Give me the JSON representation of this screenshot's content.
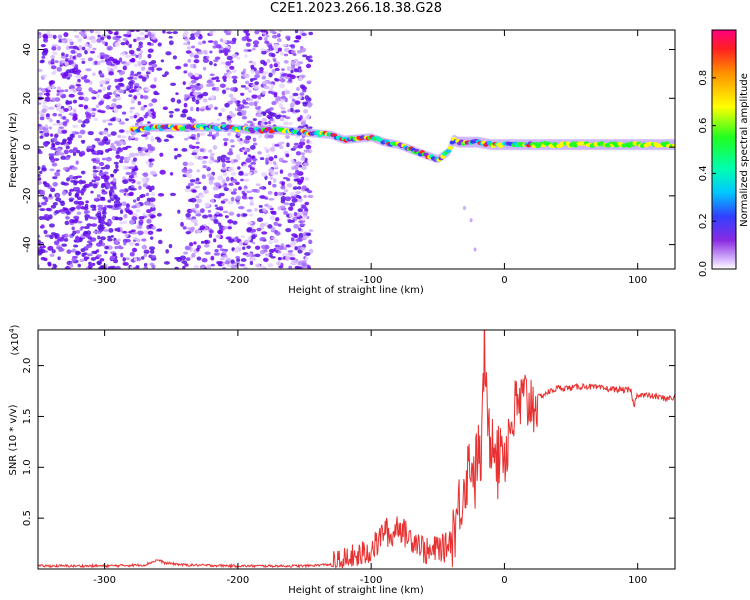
{
  "title": "C2E1.2023.266.18.38.G28",
  "chart_data": [
    {
      "type": "heatmap",
      "title": "C2E1.2023.266.18.38.G28",
      "xlabel": "Height of straight line (km)",
      "ylabel": "Frequency (Hz)",
      "xlim": [
        -350,
        128
      ],
      "ylim": [
        -50,
        48
      ],
      "x_ticks": [
        "-300",
        "-200",
        "-100",
        "0",
        "100"
      ],
      "x_tick_values": [
        -300,
        -200,
        -100,
        0,
        100
      ],
      "y_ticks": [
        "40",
        "20",
        "0",
        "-20",
        "-40"
      ],
      "y_tick_values": [
        40,
        20,
        0,
        -20,
        -40
      ],
      "colorbar": {
        "label": "Normalized spectral amplitude",
        "ticks": [
          "0.0",
          "0.2",
          "0.4",
          "0.6",
          "0.8"
        ],
        "tick_values": [
          0.0,
          0.2,
          0.4,
          0.6,
          0.8
        ],
        "range": [
          0,
          1
        ],
        "colormap": "rainbow"
      },
      "trace": {
        "x": [
          -280,
          -265,
          -250,
          -230,
          -210,
          -190,
          -170,
          -150,
          -130,
          -120,
          -100,
          -90,
          -80,
          -70,
          -60,
          -50,
          -42,
          -38,
          -35,
          -30,
          -20,
          -10,
          0,
          20,
          50,
          80,
          100,
          128
        ],
        "y": [
          7,
          8,
          8,
          8,
          8,
          7,
          7,
          6,
          5,
          3,
          4,
          2,
          1,
          -1,
          -3,
          -5,
          -2,
          3,
          2,
          2,
          2,
          1,
          1,
          1,
          1,
          1,
          1,
          1
        ]
      },
      "noise_region_x": [
        -350,
        -145
      ],
      "grid": false
    },
    {
      "type": "line",
      "xlabel": "Height of straight line (km)",
      "ylabel": "SNR (10 * v/v)",
      "y_multiplier": "(x10",
      "y_multiplier_exp": "4",
      "y_multiplier_close": ")",
      "xlim": [
        -350,
        128
      ],
      "ylim": [
        0,
        2.35
      ],
      "x_ticks": [
        "-300",
        "-200",
        "-100",
        "0",
        "100"
      ],
      "x_tick_values": [
        -300,
        -200,
        -100,
        0,
        100
      ],
      "y_ticks": [
        "0.5",
        "1.0",
        "1.5",
        "2.0"
      ],
      "y_tick_values": [
        0.5,
        1.0,
        1.5,
        2.0
      ],
      "series": [
        {
          "color": "#e83030",
          "x": [
            -350,
            -300,
            -270,
            -260,
            -255,
            -240,
            -200,
            -150,
            -125,
            -115,
            -105,
            -95,
            -90,
            -85,
            -80,
            -75,
            -70,
            -65,
            -60,
            -55,
            -50,
            -45,
            -40,
            -35,
            -30,
            -25,
            -22,
            -20,
            -18,
            -16,
            -15,
            -13,
            -10,
            -8,
            -5,
            -2,
            0,
            5,
            10,
            15,
            20,
            30,
            40,
            50,
            60,
            70,
            80,
            90,
            95,
            97,
            100,
            110,
            120,
            128
          ],
          "y": [
            0.03,
            0.03,
            0.04,
            0.09,
            0.06,
            0.04,
            0.03,
            0.03,
            0.05,
            0.1,
            0.15,
            0.25,
            0.4,
            0.3,
            0.45,
            0.35,
            0.3,
            0.28,
            0.18,
            0.15,
            0.22,
            0.2,
            0.3,
            0.55,
            0.85,
            1.1,
            0.9,
            1.2,
            1.0,
            1.6,
            2.35,
            1.4,
            1.25,
            1.45,
            1.0,
            1.35,
            1.1,
            1.45,
            1.6,
            1.65,
            1.65,
            1.72,
            1.78,
            1.78,
            1.8,
            1.78,
            1.77,
            1.76,
            1.75,
            1.6,
            1.72,
            1.7,
            1.68,
            1.68
          ]
        }
      ],
      "grid": false
    }
  ]
}
